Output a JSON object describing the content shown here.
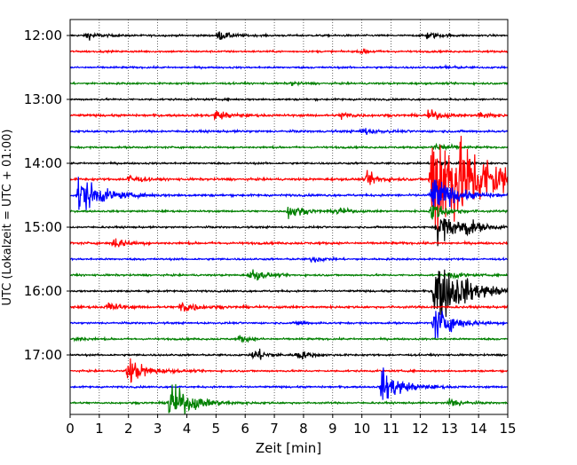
{
  "chart_data": {
    "type": "line",
    "title": "",
    "xlabel": "Zeit  [min]",
    "ylabel": "UTC (Lokalzeit = UTC + 01:00)",
    "xlim": [
      0,
      15
    ],
    "ylim_rows": [
      0,
      24
    ],
    "x_ticks": [
      0,
      1,
      2,
      3,
      4,
      5,
      6,
      7,
      8,
      9,
      10,
      11,
      12,
      13,
      14,
      15
    ],
    "x_tick_labels": [
      "0",
      "1",
      "2",
      "3",
      "4",
      "5",
      "6",
      "7",
      "8",
      "9",
      "10",
      "11",
      "12",
      "13",
      "14",
      "15"
    ],
    "y_ticks_rows": [
      0,
      4,
      8,
      12,
      16,
      20
    ],
    "y_tick_labels": [
      "12:00",
      "13:00",
      "14:00",
      "15:00",
      "16:00",
      "17:00"
    ],
    "grid": "vertical dotted at every minute",
    "row_interval_minutes": 15,
    "row_colors": [
      "#000000",
      "#ff0000",
      "#0000ff",
      "#008000"
    ],
    "series": [
      {
        "row": 0,
        "time": "12:00",
        "color": "#000000",
        "noise": 0.05,
        "events": [
          {
            "t": 0.6,
            "amp": 0.22
          },
          {
            "t": 5.1,
            "amp": 0.28
          },
          {
            "t": 12.2,
            "amp": 0.25
          }
        ]
      },
      {
        "row": 1,
        "time": "12:15",
        "color": "#ff0000",
        "noise": 0.05,
        "events": [
          {
            "t": 10.0,
            "amp": 0.12
          }
        ]
      },
      {
        "row": 2,
        "time": "12:30",
        "color": "#0000ff",
        "noise": 0.05,
        "events": [
          {
            "t": 12.9,
            "amp": 0.1
          }
        ]
      },
      {
        "row": 3,
        "time": "12:45",
        "color": "#008000",
        "noise": 0.05,
        "events": [
          {
            "t": 7.6,
            "amp": 0.1
          }
        ]
      },
      {
        "row": 4,
        "time": "13:00",
        "color": "#000000",
        "noise": 0.05,
        "events": []
      },
      {
        "row": 5,
        "time": "13:15",
        "color": "#ff0000",
        "noise": 0.06,
        "events": [
          {
            "t": 5.0,
            "amp": 0.32
          },
          {
            "t": 9.3,
            "amp": 0.22
          },
          {
            "t": 12.3,
            "amp": 0.3
          },
          {
            "t": 14.0,
            "amp": 0.25
          }
        ]
      },
      {
        "row": 6,
        "time": "13:30",
        "color": "#0000ff",
        "noise": 0.06,
        "events": [
          {
            "t": 10.0,
            "amp": 0.25
          }
        ]
      },
      {
        "row": 7,
        "time": "13:45",
        "color": "#008000",
        "noise": 0.05,
        "events": [
          {
            "t": 12.5,
            "amp": 0.35
          }
        ]
      },
      {
        "row": 8,
        "time": "14:00",
        "color": "#000000",
        "noise": 0.05,
        "events": [
          {
            "t": 12.5,
            "amp": 0.3
          }
        ]
      },
      {
        "row": 9,
        "time": "14:15",
        "color": "#ff0000",
        "noise": 0.06,
        "events": [
          {
            "t": 2.0,
            "amp": 0.3
          },
          {
            "t": 10.2,
            "amp": 0.4
          },
          {
            "t": 12.4,
            "amp": 4.0
          }
        ]
      },
      {
        "row": 10,
        "time": "14:30",
        "color": "#0000ff",
        "noise": 0.06,
        "events": [
          {
            "t": 0.3,
            "amp": 1.2
          },
          {
            "t": 12.4,
            "amp": 1.2
          }
        ]
      },
      {
        "row": 11,
        "time": "14:45",
        "color": "#008000",
        "noise": 0.05,
        "events": [
          {
            "t": 7.5,
            "amp": 0.45
          },
          {
            "t": 9.1,
            "amp": 0.25
          },
          {
            "t": 12.4,
            "amp": 0.6
          }
        ]
      },
      {
        "row": 12,
        "time": "15:00",
        "color": "#000000",
        "noise": 0.05,
        "events": [
          {
            "t": 12.6,
            "amp": 1.0
          },
          {
            "t": 13.5,
            "amp": 0.45
          }
        ]
      },
      {
        "row": 13,
        "time": "15:15",
        "color": "#ff0000",
        "noise": 0.06,
        "events": [
          {
            "t": 1.5,
            "amp": 0.35
          }
        ]
      },
      {
        "row": 14,
        "time": "15:30",
        "color": "#0000ff",
        "noise": 0.05,
        "events": [
          {
            "t": 8.3,
            "amp": 0.2
          }
        ]
      },
      {
        "row": 15,
        "time": "15:45",
        "color": "#008000",
        "noise": 0.05,
        "events": [
          {
            "t": 6.2,
            "amp": 0.4
          },
          {
            "t": 13.0,
            "amp": 0.25
          }
        ]
      },
      {
        "row": 16,
        "time": "16:00",
        "color": "#000000",
        "noise": 0.05,
        "events": [
          {
            "t": 12.5,
            "amp": 2.0
          }
        ]
      },
      {
        "row": 17,
        "time": "16:15",
        "color": "#ff0000",
        "noise": 0.06,
        "events": [
          {
            "t": 1.3,
            "amp": 0.3
          },
          {
            "t": 3.8,
            "amp": 0.45
          }
        ]
      },
      {
        "row": 18,
        "time": "16:30",
        "color": "#0000ff",
        "noise": 0.05,
        "events": [
          {
            "t": 7.8,
            "amp": 0.15
          },
          {
            "t": 12.5,
            "amp": 1.0
          }
        ]
      },
      {
        "row": 19,
        "time": "16:45",
        "color": "#008000",
        "noise": 0.05,
        "events": [
          {
            "t": 0.2,
            "amp": 0.15
          },
          {
            "t": 5.8,
            "amp": 0.2
          }
        ]
      },
      {
        "row": 20,
        "time": "17:00",
        "color": "#000000",
        "noise": 0.05,
        "events": [
          {
            "t": 6.3,
            "amp": 0.45
          },
          {
            "t": 7.8,
            "amp": 0.3
          }
        ]
      },
      {
        "row": 21,
        "time": "17:15",
        "color": "#ff0000",
        "noise": 0.05,
        "events": [
          {
            "t": 2.0,
            "amp": 0.8
          }
        ]
      },
      {
        "row": 22,
        "time": "17:30",
        "color": "#0000ff",
        "noise": 0.05,
        "events": [
          {
            "t": 10.7,
            "amp": 1.0
          }
        ]
      },
      {
        "row": 23,
        "time": "17:45",
        "color": "#008000",
        "noise": 0.05,
        "events": [
          {
            "t": 3.4,
            "amp": 1.2
          },
          {
            "t": 13.0,
            "amp": 0.3
          }
        ]
      }
    ]
  }
}
